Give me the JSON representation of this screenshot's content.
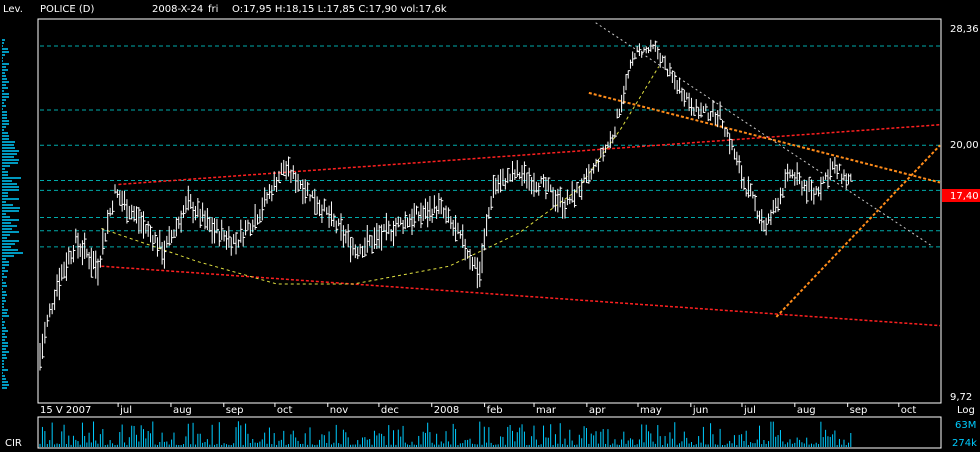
{
  "header": {
    "levels_label": "Lev.",
    "symbol": "POLICE (D)",
    "date": "2008-X-24",
    "weekday": "fri",
    "ohlc": "O:17,95 H:18,15 L:17,85 C:17,90 vol:17,6k"
  },
  "price_axis": {
    "top_label": "28,36",
    "mid_label": "20,00",
    "bottom_label": "9,72",
    "scale_label": "Log",
    "current_price": "17,40"
  },
  "volume_panel": {
    "label": "CIR",
    "max_label": "63M",
    "min_label": "274k"
  },
  "time_axis": {
    "ticks": [
      {
        "label": "15 V 2007",
        "date": "2007-05-15"
      },
      {
        "label": "jul",
        "date": "2007-07-01"
      },
      {
        "label": "aug",
        "date": "2007-08-01"
      },
      {
        "label": "sep",
        "date": "2007-09-01"
      },
      {
        "label": "oct",
        "date": "2007-10-01"
      },
      {
        "label": "nov",
        "date": "2007-11-01"
      },
      {
        "label": "dec",
        "date": "2007-12-01"
      },
      {
        "label": "2008",
        "date": "2008-01-01"
      },
      {
        "label": "feb",
        "date": "2008-02-01"
      },
      {
        "label": "mar",
        "date": "2008-03-01"
      },
      {
        "label": "apr",
        "date": "2008-04-01"
      },
      {
        "label": "may",
        "date": "2008-05-01"
      },
      {
        "label": "jun",
        "date": "2008-06-01"
      },
      {
        "label": "jul",
        "date": "2008-07-01"
      },
      {
        "label": "aug",
        "date": "2008-08-01"
      },
      {
        "label": "sep",
        "date": "2008-09-01"
      },
      {
        "label": "oct",
        "date": "2008-10-01"
      }
    ]
  },
  "colors": {
    "background": "#000000",
    "grid": "#00c8c8",
    "bars": "#ffffff",
    "red_trend": "#ff2020",
    "orange_trend": "#ff8c1a",
    "yellow_arc": "#e0e040",
    "volume": "#00ccff",
    "current_price_box": "#ff0000"
  },
  "chart_data": {
    "type": "ohlc",
    "scale": "log",
    "ylim": [
      9.72,
      28.36
    ],
    "x_range": [
      "2007-05-15",
      "2008-10-24"
    ],
    "support_resistance_levels": [
      26.5,
      22.1,
      20.0,
      18.1,
      17.6,
      16.3,
      15.7,
      15.0
    ],
    "series": [
      {
        "values": [
          [
            "2007-05-15",
            11.0
          ],
          [
            "2007-05-25",
            13.5
          ],
          [
            "2007-06-05",
            15.2
          ],
          [
            "2007-06-18",
            14.2
          ],
          [
            "2007-06-28",
            17.5
          ],
          [
            "2007-07-12",
            16.2
          ],
          [
            "2007-07-27",
            14.8
          ],
          [
            "2007-08-10",
            17.0
          ],
          [
            "2007-08-24",
            15.8
          ],
          [
            "2007-09-07",
            15.2
          ],
          [
            "2007-09-21",
            16.6
          ],
          [
            "2007-10-05",
            18.8
          ],
          [
            "2007-10-19",
            17.6
          ],
          [
            "2007-11-02",
            16.2
          ],
          [
            "2007-11-16",
            14.9
          ],
          [
            "2007-11-30",
            15.4
          ],
          [
            "2007-12-14",
            16.1
          ],
          [
            "2008-01-04",
            16.8
          ],
          [
            "2008-01-18",
            15.2
          ],
          [
            "2008-01-28",
            13.9
          ],
          [
            "2008-02-05",
            17.8
          ],
          [
            "2008-02-19",
            18.5
          ],
          [
            "2008-03-04",
            17.9
          ],
          [
            "2008-03-18",
            16.9
          ],
          [
            "2008-04-01",
            18.2
          ],
          [
            "2008-04-15",
            20.5
          ],
          [
            "2008-04-28",
            26.0
          ],
          [
            "2008-05-10",
            26.3
          ],
          [
            "2008-05-20",
            24.2
          ],
          [
            "2008-06-03",
            22.1
          ],
          [
            "2008-06-17",
            21.8
          ],
          [
            "2008-07-01",
            18.0
          ],
          [
            "2008-07-14",
            15.8
          ],
          [
            "2008-07-28",
            18.5
          ],
          [
            "2008-08-11",
            17.4
          ],
          [
            "2008-08-22",
            18.8
          ],
          [
            "2008-09-03",
            17.9
          ]
        ]
      }
    ],
    "volume_scale": [
      "274k",
      "63M"
    ]
  }
}
